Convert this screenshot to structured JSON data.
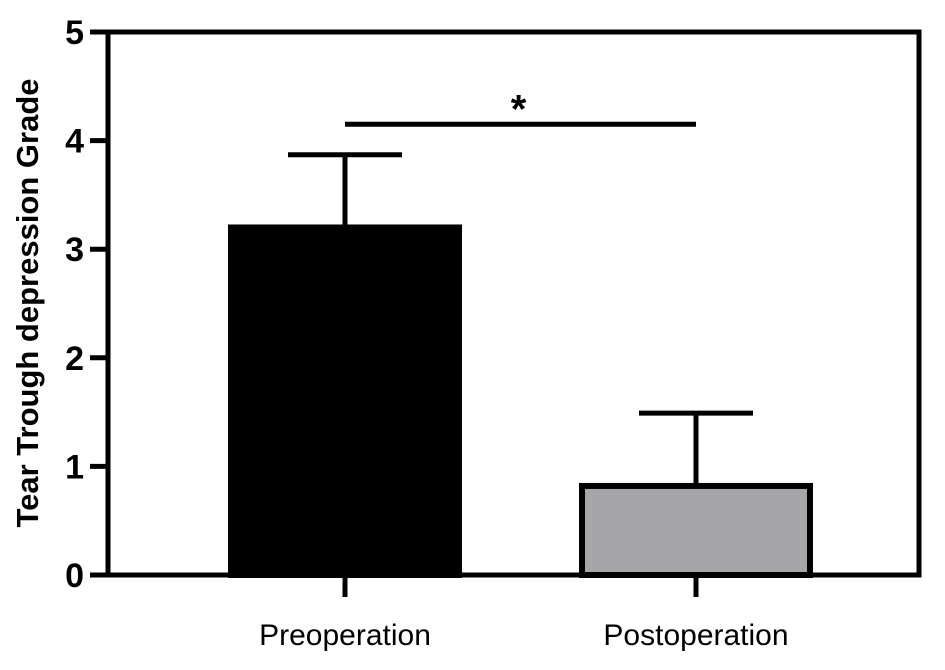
{
  "chart_data": {
    "type": "bar",
    "categories": [
      "Preoperation",
      "Postoperation"
    ],
    "values": [
      3.2,
      0.82
    ],
    "error_upper": [
      3.87,
      1.49
    ],
    "bar_colors": [
      "#000000",
      "#a6a6a8"
    ],
    "title": "",
    "xlabel": "",
    "ylabel": "Tear Trough depression Grade",
    "ylim": [
      0,
      5
    ],
    "yticks": [
      "0",
      "1",
      "2",
      "3",
      "4",
      "5"
    ],
    "significance": {
      "label": "*",
      "between": [
        0,
        1
      ],
      "level": 4.15
    },
    "grid": false,
    "legend": "none"
  }
}
